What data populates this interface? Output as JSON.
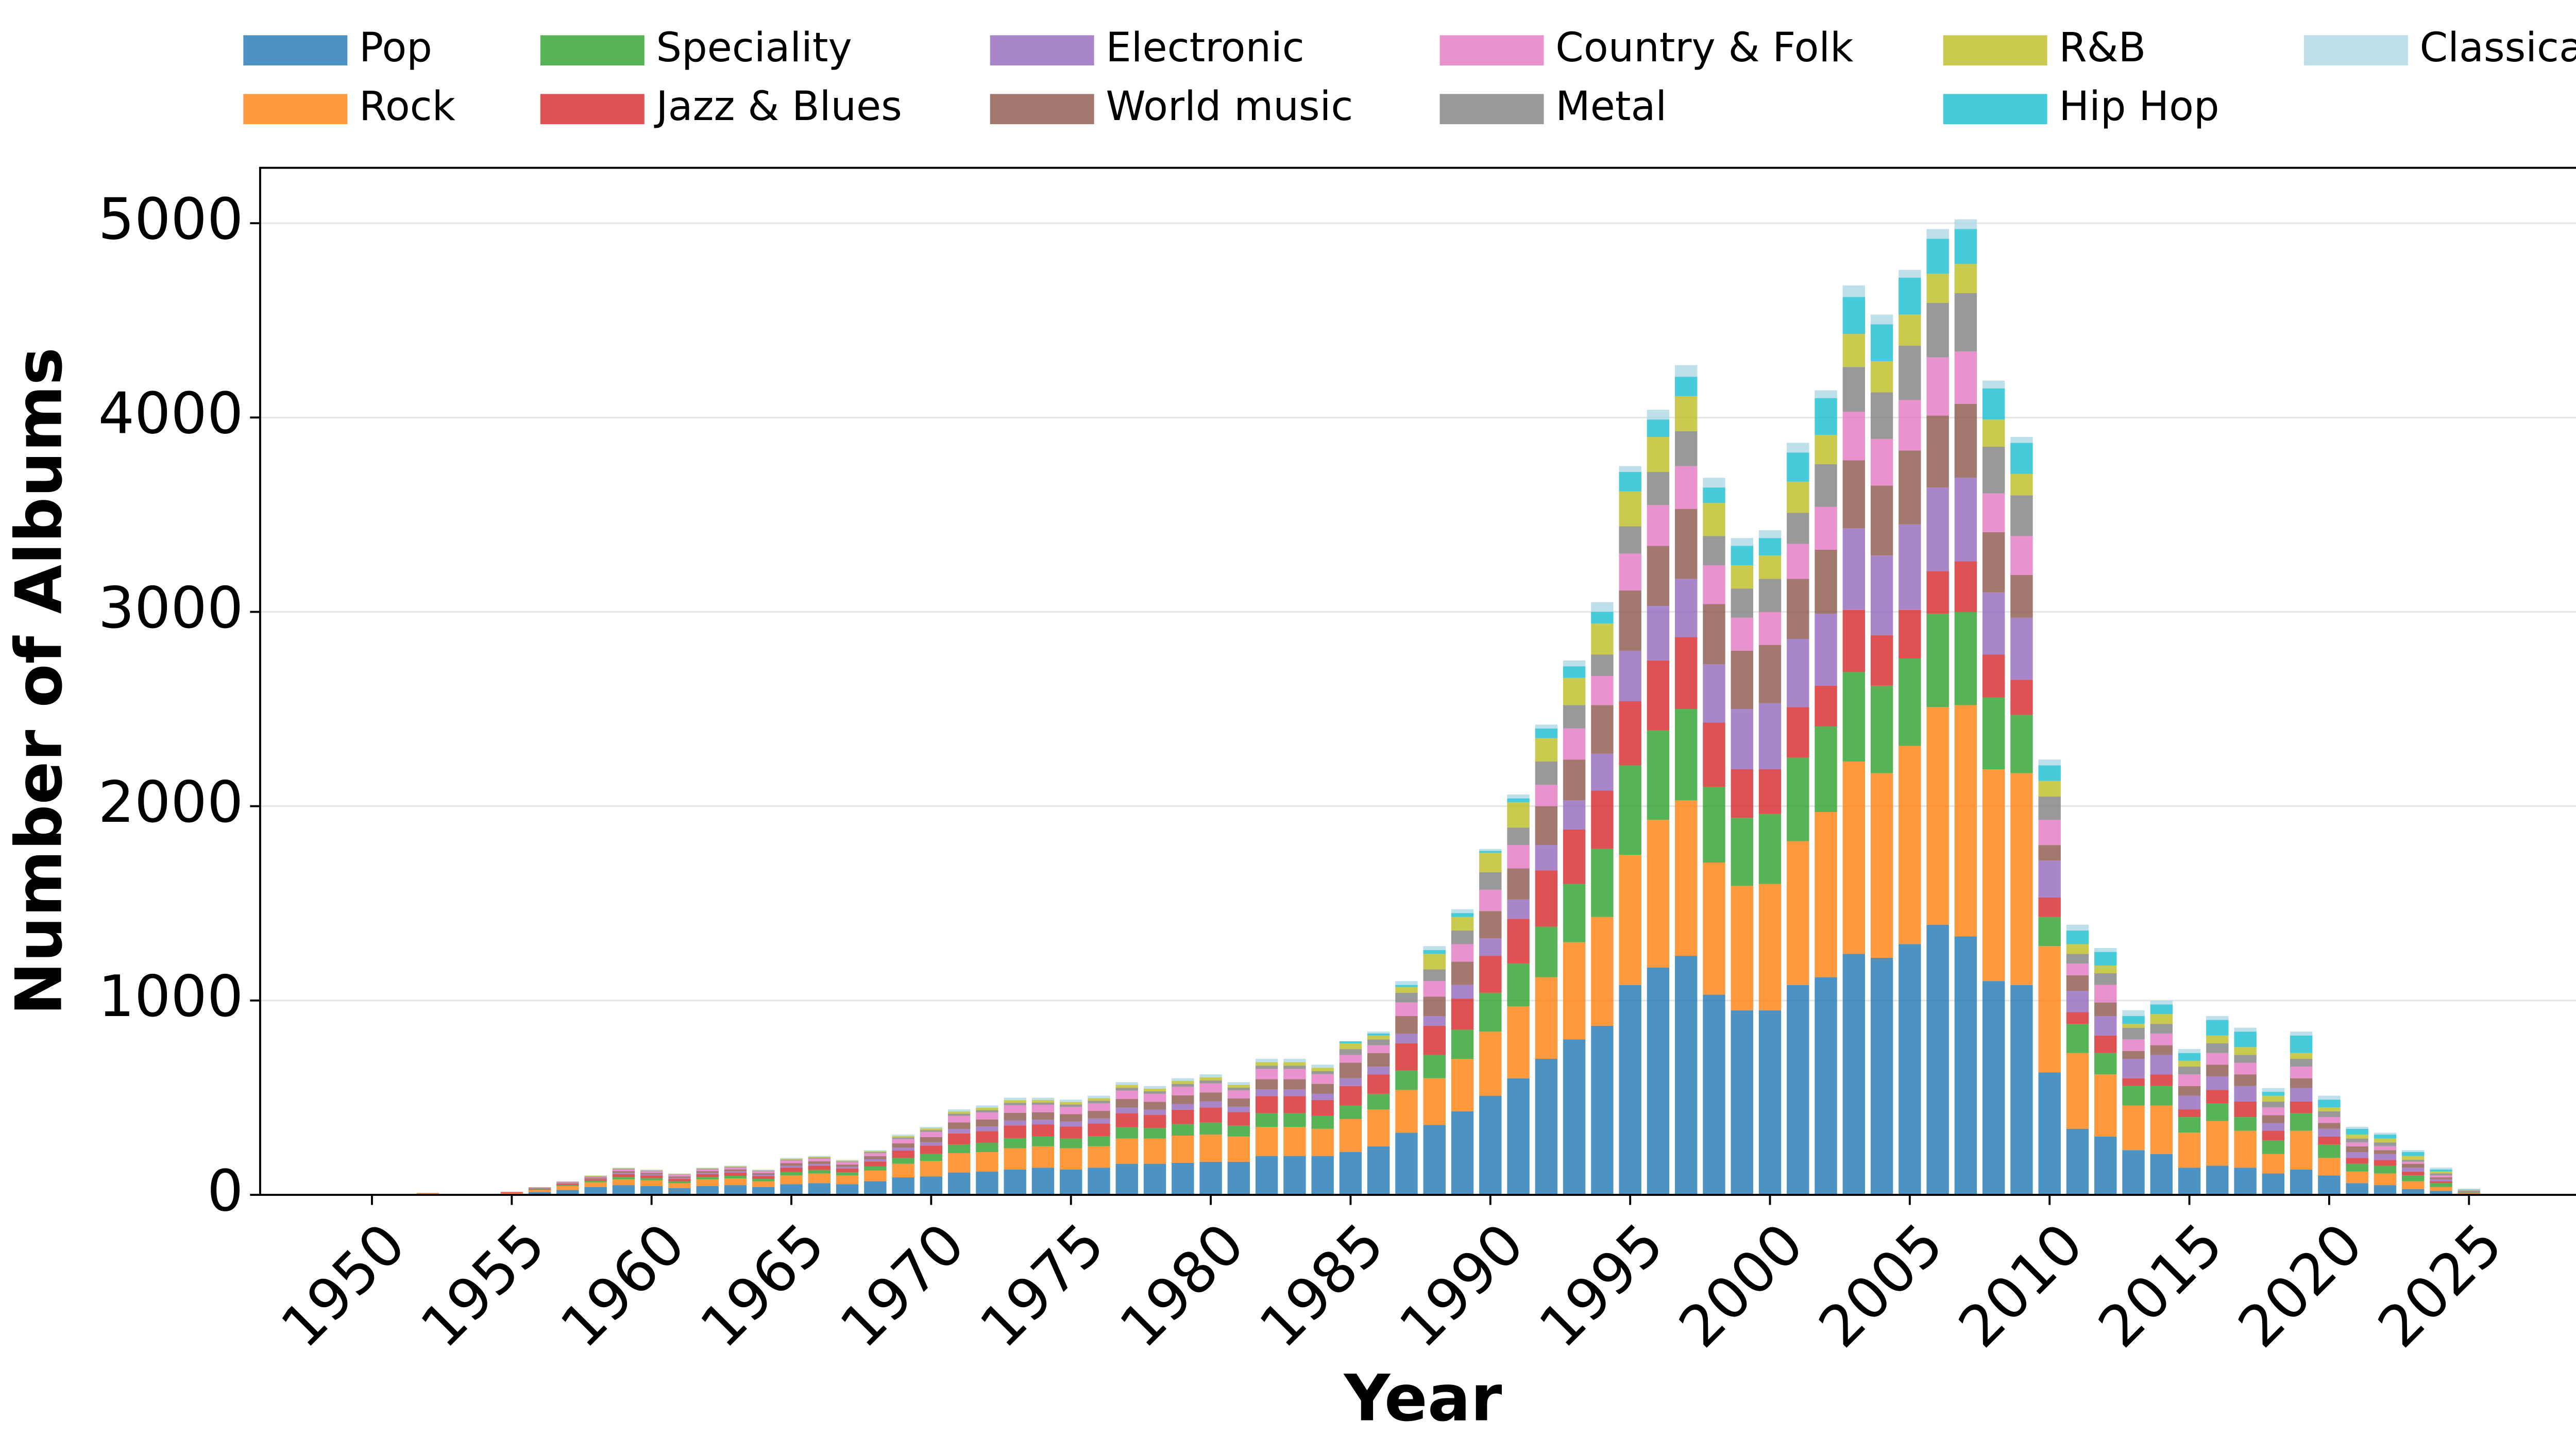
{
  "chart_data": {
    "type": "stacked_bar",
    "xlabel": "Year",
    "ylabel": "Number of Albums",
    "x": [
      1952,
      1953,
      1954,
      1955,
      1956,
      1957,
      1958,
      1959,
      1960,
      1961,
      1962,
      1963,
      1964,
      1965,
      1966,
      1967,
      1968,
      1969,
      1970,
      1971,
      1972,
      1973,
      1974,
      1975,
      1976,
      1977,
      1978,
      1979,
      1980,
      1981,
      1982,
      1983,
      1984,
      1985,
      1986,
      1987,
      1988,
      1989,
      1990,
      1991,
      1992,
      1993,
      1994,
      1995,
      1996,
      1997,
      1998,
      1999,
      2000,
      2001,
      2002,
      2003,
      2004,
      2005,
      2006,
      2007,
      2008,
      2009,
      2010,
      2011,
      2012,
      2013,
      2014,
      2015,
      2016,
      2017,
      2018,
      2019,
      2020,
      2021,
      2022,
      2023,
      2024,
      2025
    ],
    "xlim": [
      1946,
      2029
    ],
    "xticks": [
      1950,
      1955,
      1960,
      1965,
      1970,
      1975,
      1980,
      1985,
      1990,
      1995,
      2000,
      2005,
      2010,
      2015,
      2020,
      2025
    ],
    "ylim": [
      0,
      5285
    ],
    "yticks": [
      0,
      1000,
      2000,
      3000,
      4000,
      5000
    ],
    "grid": true,
    "legend": "top",
    "series": [
      {
        "name": "Pop",
        "color": "#1f77b4",
        "values": [
          0,
          0,
          0,
          5,
          15,
          25,
          40,
          50,
          45,
          35,
          45,
          50,
          40,
          55,
          60,
          55,
          70,
          90,
          95,
          115,
          120,
          130,
          140,
          130,
          140,
          160,
          160,
          165,
          170,
          170,
          200,
          200,
          200,
          220,
          250,
          320,
          360,
          430,
          510,
          600,
          700,
          800,
          870,
          1080,
          1170,
          1230,
          1030,
          950,
          950,
          1080,
          1120,
          1240,
          1220,
          1290,
          1390,
          1330,
          1100,
          1080,
          630,
          340,
          300,
          230,
          210,
          140,
          150,
          140,
          110,
          130,
          100,
          60,
          50,
          30,
          20,
          5
        ]
      },
      {
        "name": "Rock",
        "color": "#ff7f0e",
        "values": [
          10,
          5,
          3,
          5,
          10,
          20,
          25,
          30,
          30,
          25,
          35,
          35,
          30,
          45,
          50,
          45,
          55,
          70,
          80,
          100,
          100,
          110,
          110,
          110,
          110,
          130,
          130,
          140,
          140,
          130,
          150,
          150,
          140,
          170,
          190,
          220,
          240,
          270,
          330,
          370,
          420,
          500,
          560,
          670,
          760,
          800,
          680,
          640,
          650,
          740,
          850,
          990,
          950,
          1020,
          1120,
          1190,
          1090,
          1090,
          650,
          390,
          320,
          230,
          250,
          180,
          230,
          190,
          100,
          200,
          90,
          60,
          60,
          40,
          20,
          5
        ]
      },
      {
        "name": "Speciality",
        "color": "#2ca02c",
        "values": [
          0,
          0,
          0,
          0,
          3,
          5,
          7,
          12,
          11,
          10,
          12,
          13,
          12,
          18,
          18,
          16,
          21,
          30,
          35,
          45,
          48,
          52,
          50,
          50,
          52,
          58,
          54,
          59,
          62,
          56,
          70,
          70,
          66,
          70,
          80,
          100,
          120,
          150,
          200,
          220,
          260,
          300,
          350,
          460,
          460,
          470,
          390,
          350,
          360,
          430,
          440,
          460,
          450,
          450,
          480,
          480,
          370,
          300,
          150,
          150,
          110,
          100,
          100,
          80,
          90,
          70,
          70,
          90,
          70,
          40,
          40,
          30,
          20,
          3
        ]
      },
      {
        "name": "Jazz & Blues",
        "color": "#d62728",
        "values": [
          0,
          0,
          0,
          5,
          4,
          6,
          9,
          15,
          14,
          12,
          15,
          16,
          15,
          22,
          22,
          20,
          26,
          38,
          44,
          56,
          60,
          65,
          62,
          62,
          65,
          72,
          68,
          74,
          78,
          70,
          88,
          88,
          82,
          100,
          100,
          140,
          150,
          160,
          190,
          230,
          290,
          280,
          300,
          330,
          360,
          370,
          330,
          250,
          230,
          260,
          210,
          320,
          260,
          250,
          220,
          260,
          220,
          180,
          100,
          60,
          90,
          40,
          60,
          40,
          70,
          80,
          50,
          60,
          40,
          30,
          30,
          20,
          10,
          2
        ]
      },
      {
        "name": "Electronic",
        "color": "#9467bd",
        "values": [
          0,
          0,
          0,
          0,
          2,
          3,
          3,
          6,
          5,
          5,
          6,
          7,
          6,
          9,
          9,
          8,
          11,
          15,
          17,
          23,
          24,
          26,
          25,
          25,
          26,
          29,
          27,
          30,
          31,
          28,
          35,
          35,
          33,
          40,
          40,
          50,
          50,
          70,
          90,
          100,
          130,
          150,
          190,
          260,
          280,
          300,
          300,
          310,
          340,
          350,
          370,
          420,
          410,
          440,
          430,
          430,
          320,
          320,
          190,
          110,
          100,
          100,
          100,
          70,
          70,
          80,
          40,
          70,
          40,
          30,
          30,
          20,
          10,
          2
        ]
      },
      {
        "name": "World music",
        "color": "#8c564b",
        "values": [
          0,
          0,
          0,
          0,
          2,
          4,
          5,
          9,
          8,
          8,
          9,
          10,
          9,
          14,
          14,
          12,
          16,
          22,
          26,
          34,
          36,
          39,
          38,
          38,
          39,
          44,
          40,
          44,
          46,
          42,
          52,
          52,
          50,
          80,
          70,
          90,
          100,
          120,
          140,
          160,
          200,
          210,
          250,
          310,
          310,
          360,
          310,
          300,
          300,
          310,
          330,
          350,
          360,
          380,
          370,
          380,
          310,
          220,
          80,
          80,
          70,
          40,
          50,
          50,
          60,
          60,
          40,
          50,
          30,
          30,
          20,
          20,
          10,
          2
        ]
      },
      {
        "name": "Country & Folk",
        "color": "#e377c2",
        "values": [
          0,
          0,
          0,
          0,
          2,
          4,
          5,
          9,
          8,
          8,
          9,
          10,
          9,
          14,
          14,
          12,
          16,
          23,
          27,
          34,
          36,
          39,
          38,
          38,
          39,
          44,
          41,
          44,
          47,
          42,
          53,
          53,
          50,
          40,
          40,
          70,
          80,
          90,
          110,
          120,
          110,
          160,
          150,
          190,
          210,
          220,
          200,
          170,
          170,
          180,
          220,
          250,
          240,
          260,
          300,
          270,
          200,
          200,
          130,
          60,
          90,
          60,
          60,
          60,
          60,
          60,
          40,
          60,
          30,
          20,
          20,
          10,
          10,
          2
        ]
      },
      {
        "name": "Metal",
        "color": "#7f7f7f",
        "values": [
          0,
          0,
          0,
          0,
          1,
          1,
          2,
          3,
          3,
          2,
          3,
          3,
          3,
          4,
          4,
          4,
          5,
          7,
          9,
          11,
          12,
          13,
          12,
          12,
          13,
          14,
          13,
          15,
          15,
          14,
          17,
          17,
          16,
          30,
          30,
          50,
          60,
          70,
          90,
          90,
          120,
          120,
          110,
          140,
          170,
          180,
          150,
          150,
          170,
          160,
          220,
          230,
          240,
          280,
          280,
          300,
          240,
          210,
          120,
          50,
          60,
          60,
          50,
          40,
          50,
          40,
          30,
          40,
          30,
          20,
          20,
          10,
          10,
          2
        ]
      },
      {
        "name": "R&B",
        "color": "#bcbd22",
        "values": [
          0,
          0,
          0,
          0,
          1,
          1,
          2,
          3,
          3,
          3,
          3,
          3,
          3,
          5,
          5,
          4,
          5,
          8,
          9,
          11,
          12,
          13,
          13,
          13,
          13,
          15,
          14,
          15,
          16,
          14,
          18,
          18,
          17,
          30,
          20,
          30,
          80,
          70,
          100,
          130,
          120,
          140,
          160,
          180,
          180,
          180,
          170,
          120,
          120,
          160,
          150,
          170,
          160,
          160,
          150,
          150,
          140,
          110,
          80,
          50,
          40,
          20,
          50,
          30,
          40,
          40,
          30,
          30,
          20,
          20,
          20,
          20,
          10,
          2
        ]
      },
      {
        "name": "Hip Hop",
        "color": "#17becf",
        "values": [
          0,
          0,
          0,
          0,
          0,
          0,
          0,
          0,
          0,
          0,
          0,
          0,
          0,
          0,
          0,
          0,
          0,
          0,
          0,
          0,
          0,
          0,
          0,
          0,
          0,
          0,
          0,
          0,
          0,
          0,
          0,
          0,
          0,
          10,
          10,
          10,
          20,
          20,
          10,
          20,
          50,
          60,
          60,
          100,
          90,
          100,
          80,
          100,
          90,
          150,
          190,
          190,
          190,
          190,
          180,
          180,
          160,
          160,
          80,
          70,
          70,
          40,
          50,
          40,
          80,
          80,
          20,
          90,
          40,
          30,
          20,
          20,
          10,
          2
        ]
      },
      {
        "name": "Classical",
        "color": "#add8e6",
        "values": [
          0,
          0,
          0,
          0,
          0,
          1,
          2,
          3,
          3,
          2,
          3,
          3,
          3,
          4,
          4,
          4,
          5,
          7,
          8,
          11,
          12,
          13,
          12,
          12,
          13,
          14,
          13,
          14,
          15,
          14,
          17,
          17,
          16,
          0,
          10,
          20,
          20,
          20,
          10,
          20,
          20,
          30,
          50,
          30,
          50,
          60,
          50,
          40,
          40,
          50,
          40,
          60,
          50,
          40,
          50,
          50,
          40,
          30,
          30,
          30,
          20,
          30,
          20,
          20,
          20,
          20,
          20,
          20,
          20,
          10,
          10,
          10,
          10,
          5
        ]
      }
    ]
  }
}
